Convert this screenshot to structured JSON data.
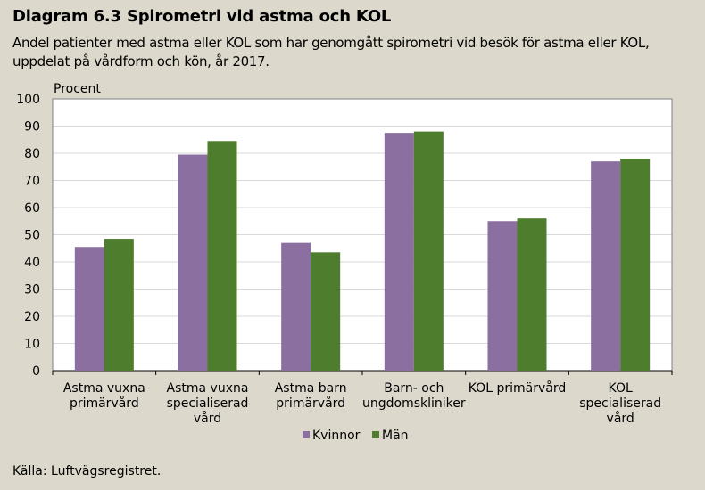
{
  "header": {
    "title": "Diagram 6.3 Spirometri vid astma och KOL",
    "subtitle": "Andel patienter med astma eller KOL som har genomgått spirometri vid besök för astma eller KOL, uppdelat på vårdform och kön, år 2017."
  },
  "footer": {
    "source": "Källa: Luftvägsregistret."
  },
  "chart_data": {
    "type": "bar",
    "ylabel": "Procent",
    "ylim": [
      0,
      100
    ],
    "yticks": [
      0,
      10,
      20,
      30,
      40,
      50,
      60,
      70,
      80,
      90,
      100
    ],
    "grid": true,
    "legend_position": "bottom",
    "categories": [
      [
        "Astma vuxna",
        "primärvård"
      ],
      [
        "Astma vuxna",
        "specialiserad",
        "vård"
      ],
      [
        "Astma barn",
        "primärvård"
      ],
      [
        "Barn- och",
        "ungdomskliniker"
      ],
      [
        "KOL primärvård"
      ],
      [
        "KOL",
        "specialiserad",
        "vård"
      ]
    ],
    "series": [
      {
        "name": "Kvinnor",
        "color": "#8a6fa0",
        "values": [
          45.5,
          79.5,
          47,
          87.5,
          55,
          77
        ]
      },
      {
        "name": "Män",
        "color": "#4e7d2e",
        "values": [
          48.5,
          84.5,
          43.5,
          88,
          56,
          78
        ]
      }
    ]
  }
}
